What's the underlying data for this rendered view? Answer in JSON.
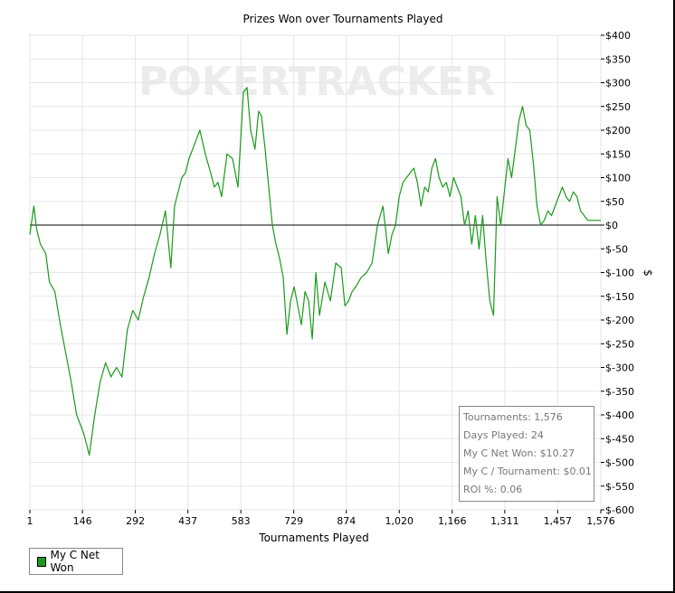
{
  "chart_data": {
    "type": "line",
    "title": "Prizes Won over Tournaments Played",
    "xlabel": "Tournaments Played",
    "ylabel": "$",
    "xlim": [
      1,
      1576
    ],
    "ylim": [
      -600,
      400
    ],
    "x_ticks": [
      "1",
      "146",
      "292",
      "437",
      "583",
      "729",
      "874",
      "1,020",
      "1,166",
      "1,311",
      "1,457",
      "1,576"
    ],
    "x_tick_values": [
      1,
      146,
      292,
      437,
      583,
      729,
      874,
      1020,
      1166,
      1311,
      1457,
      1576
    ],
    "y_ticks": [
      "$400",
      "$350",
      "$300",
      "$250",
      "$200",
      "$150",
      "$100",
      "$50",
      "$0",
      "$-50",
      "$-100",
      "$-150",
      "$-200",
      "$-250",
      "$-300",
      "$-350",
      "$-400",
      "$-450",
      "$-500",
      "$-550",
      "$-600"
    ],
    "y_tick_values": [
      400,
      350,
      300,
      250,
      200,
      150,
      100,
      50,
      0,
      -50,
      -100,
      -150,
      -200,
      -250,
      -300,
      -350,
      -400,
      -450,
      -500,
      -550,
      -600
    ],
    "grid": true,
    "legend_position": "bottom-left",
    "series": [
      {
        "name": "My C Net Won",
        "color": "#1a9a1a",
        "x": [
          1,
          12,
          20,
          30,
          45,
          55,
          70,
          85,
          100,
          115,
          130,
          150,
          165,
          180,
          195,
          210,
          225,
          240,
          255,
          270,
          285,
          300,
          315,
          330,
          345,
          360,
          375,
          390,
          400,
          410,
          420,
          430,
          440,
          455,
          470,
          485,
          500,
          510,
          520,
          530,
          545,
          560,
          575,
          590,
          600,
          610,
          622,
          632,
          640,
          650,
          660,
          670,
          680,
          690,
          700,
          710,
          720,
          730,
          740,
          750,
          760,
          770,
          780,
          790,
          800,
          815,
          830,
          845,
          860,
          870,
          880,
          890,
          900,
          915,
          930,
          945,
          960,
          975,
          990,
          1000,
          1010,
          1020,
          1030,
          1040,
          1050,
          1060,
          1070,
          1080,
          1090,
          1100,
          1110,
          1120,
          1130,
          1140,
          1150,
          1160,
          1170,
          1180,
          1190,
          1200,
          1210,
          1220,
          1230,
          1240,
          1250,
          1260,
          1270,
          1280,
          1290,
          1300,
          1310,
          1320,
          1330,
          1340,
          1350,
          1360,
          1370,
          1380,
          1390,
          1400,
          1410,
          1420,
          1430,
          1440,
          1450,
          1460,
          1470,
          1480,
          1490,
          1500,
          1510,
          1520,
          1530,
          1540,
          1550,
          1560,
          1570,
          1576
        ],
        "values": [
          -20,
          40,
          -10,
          -40,
          -60,
          -120,
          -140,
          -210,
          -270,
          -330,
          -400,
          -440,
          -485,
          -400,
          -330,
          -290,
          -320,
          -300,
          -320,
          -220,
          -180,
          -200,
          -150,
          -110,
          -60,
          -20,
          30,
          -90,
          40,
          70,
          100,
          110,
          140,
          170,
          200,
          150,
          110,
          80,
          90,
          60,
          150,
          140,
          80,
          280,
          290,
          200,
          160,
          240,
          230,
          160,
          80,
          0,
          -40,
          -70,
          -110,
          -230,
          -160,
          -130,
          -170,
          -210,
          -140,
          -160,
          -240,
          -100,
          -190,
          -120,
          -160,
          -80,
          -90,
          -170,
          -160,
          -140,
          -130,
          -110,
          -100,
          -80,
          0,
          40,
          -60,
          -20,
          0,
          60,
          90,
          100,
          110,
          120,
          90,
          40,
          80,
          70,
          120,
          140,
          100,
          80,
          90,
          60,
          100,
          80,
          60,
          0,
          30,
          -40,
          20,
          -50,
          20,
          -80,
          -160,
          -190,
          60,
          0,
          70,
          140,
          100,
          160,
          220,
          250,
          210,
          200,
          130,
          40,
          0,
          10,
          30,
          20,
          40,
          60,
          80,
          60,
          50,
          70,
          60,
          30,
          20,
          10,
          10,
          10,
          10,
          10
        ]
      }
    ]
  },
  "watermark": "POKERTRACKER",
  "stats": {
    "line1": "Tournaments: 1,576",
    "line2": "Days Played: 24",
    "line3": "My C Net Won: $10.27",
    "line4": "My C / Tournament: $0.01",
    "line5": "ROI %: 0.06"
  },
  "legend": {
    "label": "My C Net Won",
    "color": "#1a9a1a"
  }
}
